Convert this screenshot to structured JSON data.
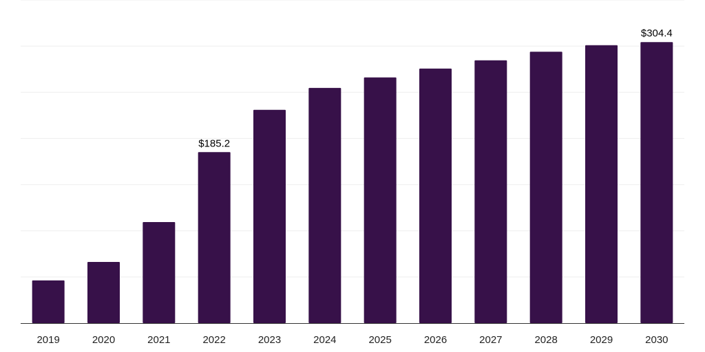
{
  "chart_data": {
    "type": "bar",
    "title": "",
    "xlabel": "",
    "ylabel": "",
    "categories": [
      "2019",
      "2020",
      "2021",
      "2022",
      "2023",
      "2024",
      "2025",
      "2026",
      "2027",
      "2028",
      "2029",
      "2030"
    ],
    "values": [
      46.3,
      66.3,
      109.5,
      185.2,
      231.0,
      254.8,
      266.1,
      275.7,
      284.7,
      294.0,
      301.0,
      304.4
    ],
    "data_labels": [
      {
        "index": 3,
        "text": "$185.2"
      },
      {
        "index": 11,
        "text": "$304.4"
      }
    ],
    "ylim": [
      0,
      350
    ],
    "ygrid_step": 50,
    "grid": true,
    "legend": "none",
    "colors": {
      "bar": "#371149",
      "grid": "#eeeeee",
      "axis": "#333333"
    }
  }
}
